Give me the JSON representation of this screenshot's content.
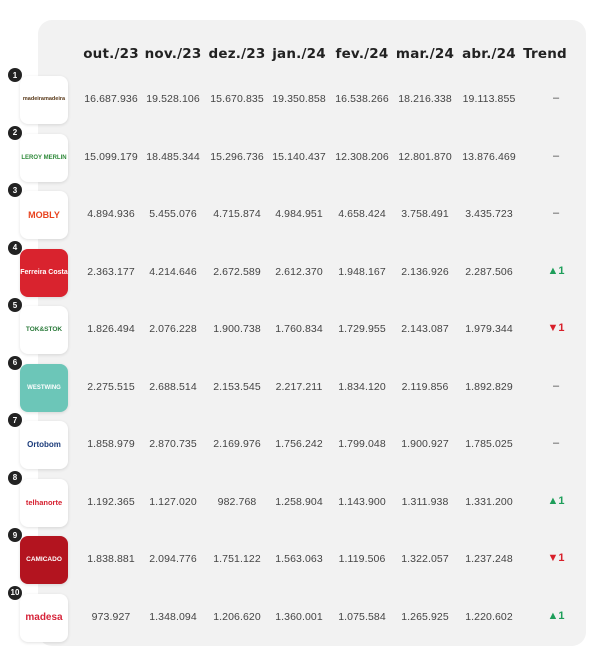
{
  "colors": {
    "up": "#1e9e5a",
    "down": "#d81f2a",
    "neutral": "#444444"
  },
  "headers": [
    "out./23",
    "nov./23",
    "dez./23",
    "jan./24",
    "fev./24",
    "mar./24",
    "abr./24",
    "Trend"
  ],
  "rows": [
    {
      "rank": "1",
      "logo_text": "madeiramadeira",
      "logo": "madeiramadeira-logo",
      "values": [
        "16.687.936",
        "19.528.106",
        "15.670.835",
        "19.350.858",
        "16.538.266",
        "18.216.338",
        "19.113.855"
      ],
      "trend": "–",
      "trend_dir": "neutral"
    },
    {
      "rank": "2",
      "logo_text": "LEROY MERLIN",
      "logo": "leroy-merlin-logo",
      "values": [
        "15.099.179",
        "18.485.344",
        "15.296.736",
        "15.140.437",
        "12.308.206",
        "12.801.870",
        "13.876.469"
      ],
      "trend": "–",
      "trend_dir": "neutral"
    },
    {
      "rank": "3",
      "logo_text": "MOBLY",
      "logo": "mobly-logo",
      "values": [
        "4.894.936",
        "5.455.076",
        "4.715.874",
        "4.984.951",
        "4.658.424",
        "3.758.491",
        "3.435.723"
      ],
      "trend": "–",
      "trend_dir": "neutral"
    },
    {
      "rank": "4",
      "logo_text": "Ferreira Costa",
      "logo": "ferreira-costa-logo",
      "values": [
        "2.363.177",
        "4.214.646",
        "2.672.589",
        "2.612.370",
        "1.948.167",
        "2.136.926",
        "2.287.506"
      ],
      "trend": "▲1",
      "trend_dir": "up"
    },
    {
      "rank": "5",
      "logo_text": "TOK&STOK",
      "logo": "tok-stok-logo",
      "values": [
        "1.826.494",
        "2.076.228",
        "1.900.738",
        "1.760.834",
        "1.729.955",
        "2.143.087",
        "1.979.344"
      ],
      "trend": "▼1",
      "trend_dir": "down"
    },
    {
      "rank": "6",
      "logo_text": "WESTWING",
      "logo": "westwing-logo",
      "values": [
        "2.275.515",
        "2.688.514",
        "2.153.545",
        "2.217.211",
        "1.834.120",
        "2.119.856",
        "1.892.829"
      ],
      "trend": "–",
      "trend_dir": "neutral"
    },
    {
      "rank": "7",
      "logo_text": "Ortobom",
      "logo": "ortobom-logo",
      "values": [
        "1.858.979",
        "2.870.735",
        "2.169.976",
        "1.756.242",
        "1.799.048",
        "1.900.927",
        "1.785.025"
      ],
      "trend": "–",
      "trend_dir": "neutral"
    },
    {
      "rank": "8",
      "logo_text": "telhanorte",
      "logo": "telhanorte-logo",
      "values": [
        "1.192.365",
        "1.127.020",
        "982.768",
        "1.258.904",
        "1.143.900",
        "1.311.938",
        "1.331.200"
      ],
      "trend": "▲1",
      "trend_dir": "up"
    },
    {
      "rank": "9",
      "logo_text": "CAMICADO",
      "logo": "camicado-logo",
      "values": [
        "1.838.881",
        "2.094.776",
        "1.751.122",
        "1.563.063",
        "1.119.506",
        "1.322.057",
        "1.237.248"
      ],
      "trend": "▼1",
      "trend_dir": "down"
    },
    {
      "rank": "10",
      "logo_text": "madesa",
      "logo": "madesa-logo",
      "values": [
        "973.927",
        "1.348.094",
        "1.206.620",
        "1.360.001",
        "1.075.584",
        "1.265.925",
        "1.220.602"
      ],
      "trend": "▲1",
      "trend_dir": "up"
    }
  ]
}
